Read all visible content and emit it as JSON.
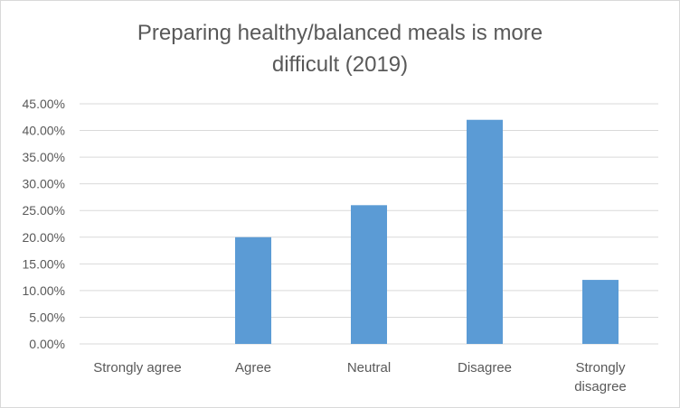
{
  "chart_data": {
    "type": "bar",
    "title_lines": [
      "Preparing healthy/balanced meals is more",
      "difficult (2019)"
    ],
    "categories": [
      "Strongly agree",
      "Agree",
      "Neutral",
      "Disagree",
      "Strongly disagree"
    ],
    "category_label_lines": [
      [
        "Strongly agree"
      ],
      [
        "Agree"
      ],
      [
        "Neutral"
      ],
      [
        "Disagree"
      ],
      [
        "Strongly",
        "disagree"
      ]
    ],
    "values": [
      0,
      0.2,
      0.26,
      0.42,
      0.12
    ],
    "ylim": [
      0,
      0.45
    ],
    "y_ticks": [
      0,
      0.05,
      0.1,
      0.15,
      0.2,
      0.25,
      0.3,
      0.35,
      0.4,
      0.45
    ],
    "y_tick_labels": [
      "0.00%",
      "5.00%",
      "10.00%",
      "15.00%",
      "20.00%",
      "25.00%",
      "30.00%",
      "35.00%",
      "40.00%",
      "45.00%"
    ],
    "xlabel": "",
    "ylabel": "",
    "grid": true,
    "legend": false,
    "bar_color": "#5b9bd5",
    "gridline_color": "#d9d9d9",
    "text_color": "#595959"
  }
}
